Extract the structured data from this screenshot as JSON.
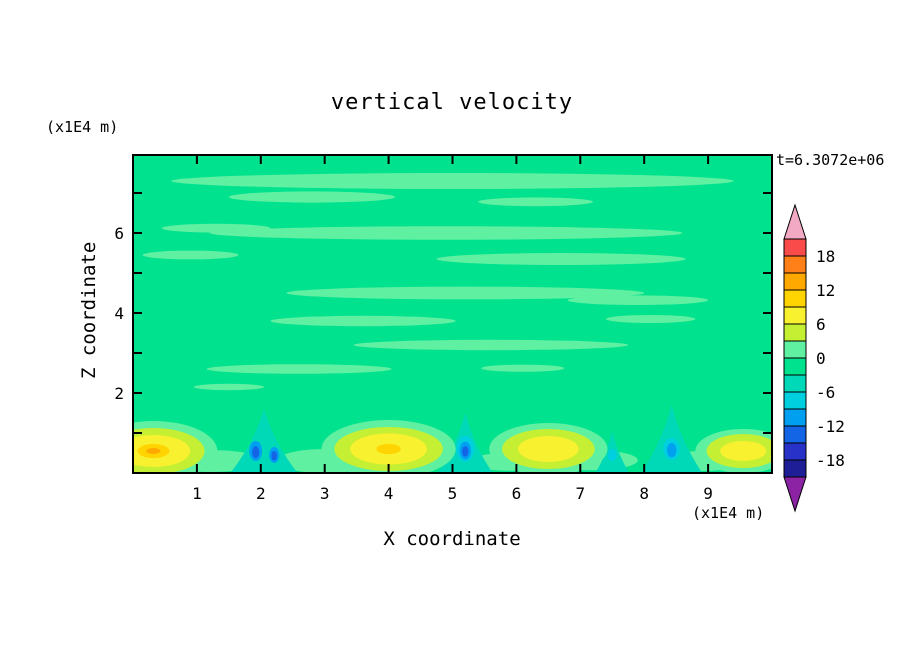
{
  "figure": {
    "title": "vertical velocity",
    "ylabel": "Z coordinate",
    "xlabel": "X coordinate",
    "y_axis_unit": "(x1E4 m)",
    "x_axis_unit": "(x1E4 m)",
    "time_label": "t=6.3072e+06"
  },
  "chart_data": {
    "type": "heatmap",
    "title": "vertical velocity",
    "xlabel": "X coordinate",
    "ylabel": "Z coordinate",
    "x_unit": "x1E4 m",
    "y_unit": "x1E4 m",
    "annotation": "t=6.3072e+06",
    "xlim": [
      0,
      10
    ],
    "ylim": [
      0,
      7.95
    ],
    "x_ticks": [
      1,
      2,
      3,
      4,
      5,
      6,
      7,
      8,
      9
    ],
    "y_ticks_all": [
      1,
      2,
      3,
      4,
      5,
      6,
      7
    ],
    "y_ticks_labeled": [
      2,
      4,
      6
    ],
    "grid": false,
    "legend_position": "right-colorbar",
    "colorbar": {
      "tick_labels": [
        "18",
        "12",
        "6",
        "0",
        "-6",
        "-12",
        "-18"
      ],
      "level_step": 3,
      "range": [
        -21,
        21
      ],
      "colors_top_to_bottom": [
        "#FA4B4B",
        "#FF7F19",
        "#FFA800",
        "#FFD400",
        "#F7F12F",
        "#C5EF33",
        "#5FF0A2",
        "#00E28E",
        "#00D9B8",
        "#00CFE0",
        "#009FF0",
        "#1464E6",
        "#2832C8",
        "#1E1E96"
      ],
      "over_color": "#F2A9C4",
      "under_color": "#8C23A5"
    },
    "field": {
      "base_level": 7,
      "description": "Field is mostly near 0 (spring green). Light-green horizontal streaks (0 to +3) drift across the upper domain. Near the surface, alternating updraft plumes (yellow, +6 to +15) and downdraft cores (blue, -9 to -15) with teal funnels (-3 to -6).",
      "streaks": [
        [
          5.0,
          7.3,
          8.8,
          0.4,
          6
        ],
        [
          2.8,
          6.9,
          2.6,
          0.28,
          6
        ],
        [
          6.3,
          6.78,
          1.8,
          0.22,
          6
        ],
        [
          4.9,
          6.0,
          7.4,
          0.34,
          6
        ],
        [
          1.3,
          6.12,
          1.7,
          0.22,
          6
        ],
        [
          6.7,
          5.35,
          3.9,
          0.3,
          6
        ],
        [
          0.9,
          5.45,
          1.5,
          0.22,
          6
        ],
        [
          5.2,
          4.5,
          5.6,
          0.32,
          6
        ],
        [
          7.9,
          4.32,
          2.2,
          0.24,
          6
        ],
        [
          3.6,
          3.8,
          2.9,
          0.26,
          6
        ],
        [
          8.1,
          3.85,
          1.4,
          0.2,
          6
        ],
        [
          5.6,
          3.2,
          4.3,
          0.26,
          6
        ],
        [
          2.6,
          2.6,
          2.9,
          0.24,
          6
        ],
        [
          6.1,
          2.62,
          1.3,
          0.18,
          6
        ],
        [
          1.5,
          2.15,
          1.1,
          0.16,
          6
        ],
        [
          1.2,
          0.3,
          1.7,
          0.55,
          6
        ],
        [
          3.0,
          0.3,
          1.5,
          0.6,
          6
        ],
        [
          5.9,
          0.28,
          1.3,
          0.45,
          6
        ],
        [
          7.2,
          0.32,
          1.4,
          0.5,
          6
        ],
        [
          8.9,
          0.3,
          1.3,
          0.5,
          6
        ]
      ],
      "updrafts": [
        {
          "x": 0.32,
          "z": 0.55,
          "rings": [
            [
              2.0,
              1.5,
              6
            ],
            [
              1.6,
              1.15,
              5
            ],
            [
              1.15,
              0.8,
              4
            ],
            [
              0.5,
              0.35,
              3
            ],
            [
              0.22,
              0.15,
              2
            ]
          ]
        },
        {
          "x": 4.0,
          "z": 0.6,
          "rings": [
            [
              2.1,
              1.45,
              6
            ],
            [
              1.7,
              1.1,
              5
            ],
            [
              1.2,
              0.78,
              4
            ],
            [
              0.38,
              0.26,
              3
            ]
          ]
        },
        {
          "x": 6.5,
          "z": 0.6,
          "rings": [
            [
              1.85,
              1.3,
              6
            ],
            [
              1.45,
              1.0,
              5
            ],
            [
              0.95,
              0.65,
              4
            ]
          ]
        },
        {
          "x": 9.55,
          "z": 0.55,
          "rings": [
            [
              1.5,
              1.1,
              6
            ],
            [
              1.15,
              0.85,
              5
            ],
            [
              0.72,
              0.5,
              4
            ]
          ]
        }
      ],
      "downdrafts": [
        {
          "x": 2.05,
          "funnel_top": 1.6,
          "funnel_hw": 0.55,
          "spots": [
            [
              -0.13,
              0.55,
              0.2,
              0.5,
              10
            ],
            [
              -0.13,
              0.52,
              0.11,
              0.3,
              11
            ],
            [
              0.16,
              0.45,
              0.16,
              0.4,
              10
            ],
            [
              0.16,
              0.43,
              0.09,
              0.24,
              11
            ]
          ]
        },
        {
          "x": 5.2,
          "funnel_top": 1.5,
          "funnel_hw": 0.45,
          "spots": [
            [
              0,
              0.6,
              0.28,
              0.65,
              9
            ],
            [
              0,
              0.56,
              0.18,
              0.45,
              10
            ],
            [
              0,
              0.54,
              0.1,
              0.26,
              11
            ]
          ]
        },
        {
          "x": 8.43,
          "funnel_top": 1.7,
          "funnel_hw": 0.5,
          "spots": [
            [
              0,
              0.6,
              0.26,
              0.55,
              9
            ],
            [
              0,
              0.57,
              0.15,
              0.36,
              10
            ]
          ]
        },
        {
          "x": 7.5,
          "funnel_top": 1.05,
          "funnel_hw": 0.28,
          "spots": [
            [
              0,
              0.45,
              0.14,
              0.3,
              9
            ]
          ]
        }
      ]
    }
  }
}
